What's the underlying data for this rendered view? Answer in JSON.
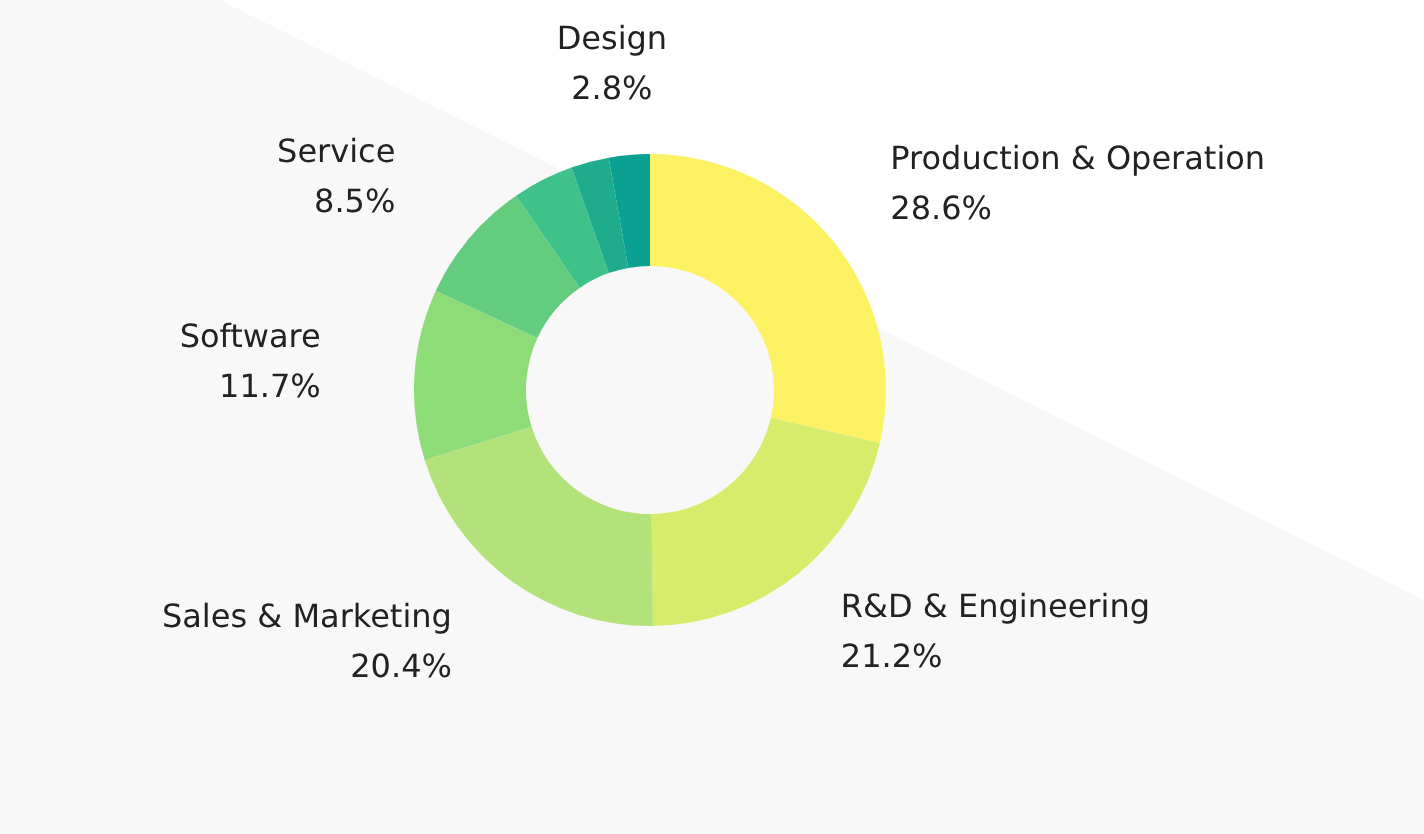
{
  "chart_data": {
    "type": "donut",
    "categories": [
      "Production & Operation",
      "R&D & Engineering",
      "Sales & Marketing",
      "Software",
      "Service",
      null,
      null,
      "Design"
    ],
    "values": [
      28.6,
      21.2,
      20.4,
      11.7,
      8.5,
      4.2,
      2.6,
      2.8
    ],
    "value_labels": [
      "28.6%",
      "21.2%",
      "20.4%",
      "11.7%",
      "8.5%",
      null,
      null,
      "2.8%"
    ],
    "colors": [
      "#fdf264",
      "#d6ec6a",
      "#b4e27a",
      "#8ddc78",
      "#64cc7e",
      "#3fc28a",
      "#1fac8c",
      "#0aa193"
    ],
    "legend": false
  }
}
